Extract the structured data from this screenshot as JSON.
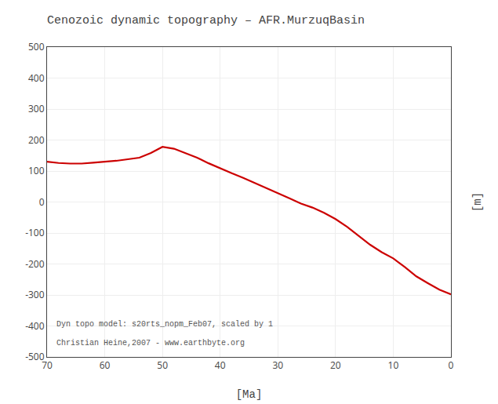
{
  "chart_data": {
    "type": "line",
    "title": "Cenozoic dynamic topography – AFR.MurzuqBasin",
    "xlabel": "[Ma]",
    "ylabel": "[m]",
    "annotations": [
      "Dyn topo model: s20rts_nopm_Feb07, scaled by 1",
      "Christian Heine,2007 - www.earthbyte.org"
    ],
    "x": [
      70,
      68,
      66,
      64,
      62,
      60,
      58,
      56,
      54,
      52,
      50,
      48,
      46,
      44,
      42,
      40,
      38,
      36,
      34,
      32,
      30,
      28,
      26,
      24,
      22,
      20,
      18,
      16,
      14,
      12,
      10,
      8,
      6,
      4,
      2,
      0
    ],
    "values": [
      130,
      126,
      124,
      124,
      127,
      130,
      133,
      138,
      143,
      158,
      178,
      172,
      158,
      143,
      125,
      108,
      93,
      78,
      62,
      45,
      28,
      12,
      -5,
      -18,
      -35,
      -55,
      -80,
      -108,
      -138,
      -162,
      -182,
      -210,
      -240,
      -262,
      -283,
      -298
    ],
    "color": "#cc0000",
    "xlim": [
      70,
      0
    ],
    "ylim": [
      -500,
      500
    ],
    "xticks": [
      70,
      60,
      50,
      40,
      30,
      20,
      10,
      0
    ],
    "yticks": [
      -500,
      -400,
      -300,
      -200,
      -100,
      0,
      100,
      200,
      300,
      400,
      500
    ],
    "grid": true
  }
}
